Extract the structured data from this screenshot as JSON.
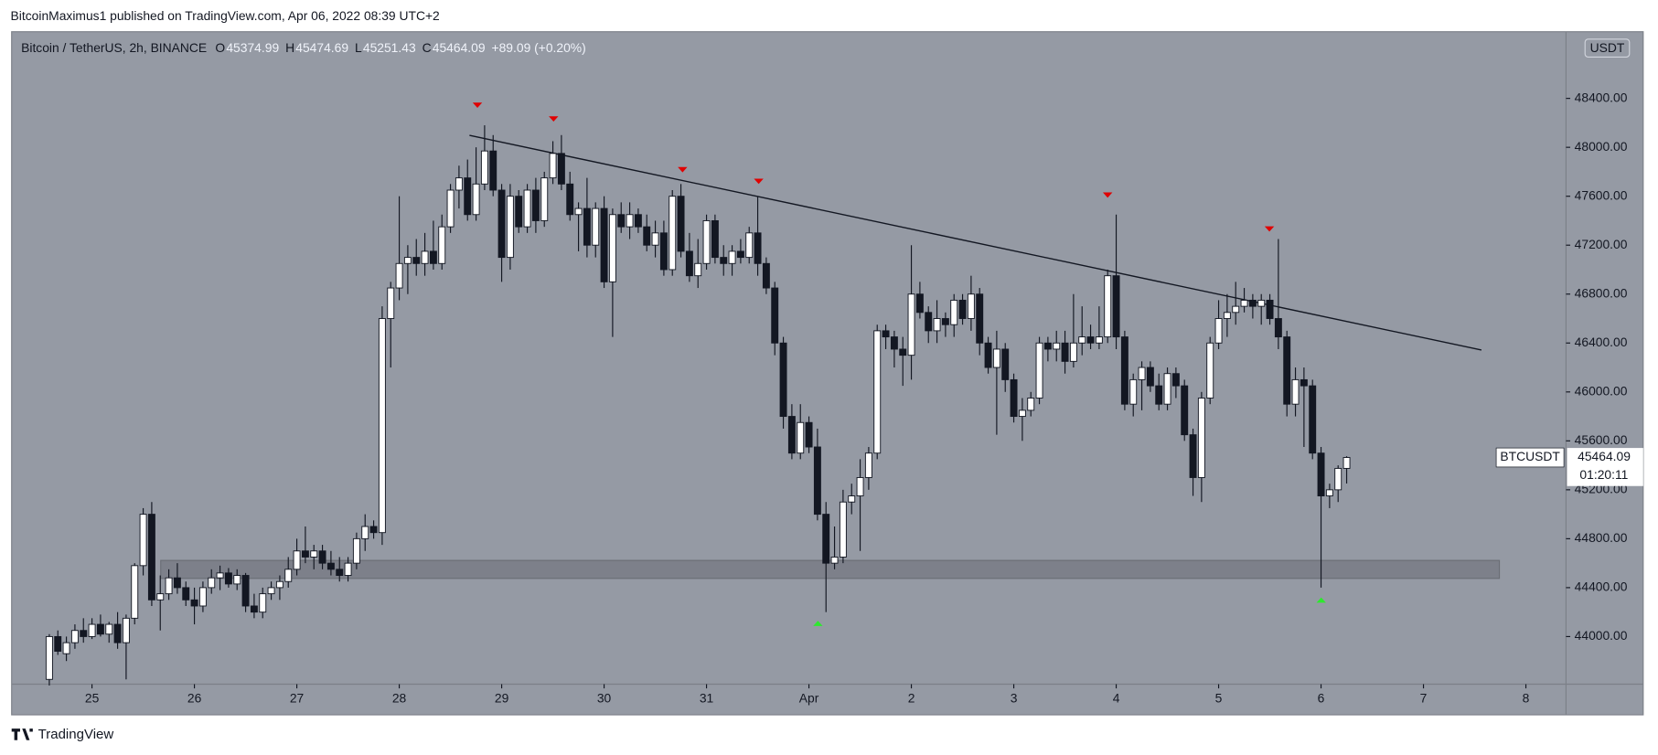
{
  "header": "BitcoinMaximus1 published on TradingView.com, Apr 06, 2022 08:39 UTC+2",
  "footer": "TradingView",
  "chart_data": {
    "type": "candlestick",
    "symbol": "Bitcoin / TetherUS, 2h, BINANCE",
    "legend_keys": [
      "O",
      "H",
      "L",
      "C"
    ],
    "change": "+89.09 (+0.20%)",
    "currency": "USDT",
    "ticker": "BTCUSDT",
    "countdown": "01:20:11",
    "up_color": "#ffffff",
    "down_color": "#131722",
    "xlim": [
      -4.29,
      177.7
    ],
    "xticks": [
      {
        "value": 5,
        "label": "25"
      },
      {
        "value": 17,
        "label": "26"
      },
      {
        "value": 29,
        "label": "27"
      },
      {
        "value": 41,
        "label": "28"
      },
      {
        "value": 53,
        "label": "29"
      },
      {
        "value": 65,
        "label": "30"
      },
      {
        "value": 77,
        "label": "31"
      },
      {
        "value": 89,
        "label": "Apr"
      },
      {
        "value": 101,
        "label": "2"
      },
      {
        "value": 113,
        "label": "3"
      },
      {
        "value": 125,
        "label": "4"
      },
      {
        "value": 137,
        "label": "5"
      },
      {
        "value": 149,
        "label": "6"
      },
      {
        "value": 161,
        "label": "7"
      },
      {
        "value": 173,
        "label": "8"
      }
    ],
    "ylim": [
      43611,
      48945
    ],
    "yticks": [
      {
        "value": 44000,
        "label": "44000.00"
      },
      {
        "value": 44400,
        "label": "44400.00"
      },
      {
        "value": 44800,
        "label": "44800.00"
      },
      {
        "value": 45200,
        "label": "45200.00"
      },
      {
        "value": 45600,
        "label": "45600.00"
      },
      {
        "value": 46000,
        "label": "46000.00"
      },
      {
        "value": 46400,
        "label": "46400.00"
      },
      {
        "value": 46800,
        "label": "46800.00"
      },
      {
        "value": 47200,
        "label": "47200.00"
      },
      {
        "value": 47600,
        "label": "47600.00"
      },
      {
        "value": 48000,
        "label": "48000.00"
      },
      {
        "value": 48400,
        "label": "48400.00"
      }
    ],
    "open": [
      43650,
      44000,
      43860,
      43950,
      44050,
      44000,
      44100,
      44020,
      44100,
      43950,
      44150,
      44580,
      45000,
      44300,
      44350,
      44480,
      44400,
      44300,
      44250,
      44400,
      44480,
      44520,
      44430,
      44500,
      44250,
      44200,
      44350,
      44400,
      44450,
      44550,
      44700,
      44650,
      44700,
      44600,
      44550,
      44500,
      44600,
      44800,
      44900,
      44850,
      46600,
      46850,
      47050,
      47100,
      47050,
      47150,
      47050,
      47350,
      47650,
      47750,
      47450,
      47700,
      47970,
      47650,
      47100,
      47600,
      47350,
      47650,
      47400,
      47750,
      47950,
      47700,
      47450,
      47500,
      47200,
      47500,
      46900,
      47450,
      47350,
      47450,
      47350,
      47200,
      47300,
      47000,
      47600,
      47150,
      46950,
      47050,
      47400,
      47100,
      47050,
      47150,
      47100,
      47300,
      47050,
      46850,
      46400,
      45800,
      45500,
      45750,
      45550,
      45000,
      44600,
      44650,
      45100,
      45150,
      45300,
      45500,
      46500,
      46450,
      46350,
      46300,
      46800,
      46650,
      46500,
      46600,
      46550,
      46750,
      46600,
      46800,
      46400,
      46200,
      46350,
      46100,
      45800,
      45850,
      45950,
      46400,
      46350,
      46400,
      46250,
      46400,
      46450,
      46400,
      46450,
      46950,
      46450,
      45900,
      46100,
      46200,
      46050,
      45900,
      46150,
      46050,
      45650,
      45300,
      45950,
      46400,
      46600,
      46650,
      46700,
      46750,
      46700,
      46750,
      46600,
      46450,
      45900,
      46100,
      46050,
      45500,
      45150,
      45200,
      45374.99
    ],
    "high": [
      44020,
      44050,
      44000,
      44100,
      44150,
      44150,
      44180,
      44120,
      44200,
      44180,
      44600,
      45050,
      45100,
      44500,
      44550,
      44600,
      44450,
      44400,
      44450,
      44550,
      44580,
      44560,
      44550,
      44520,
      44350,
      44400,
      44450,
      44500,
      44650,
      44800,
      44900,
      44750,
      44750,
      44700,
      44650,
      44650,
      44850,
      45000,
      44950,
      46700,
      46900,
      47600,
      47200,
      47250,
      47300,
      47400,
      47450,
      47700,
      47850,
      47900,
      48000,
      48180,
      48100,
      47700,
      47700,
      47650,
      47700,
      47750,
      47800,
      48050,
      48100,
      47800,
      47550,
      47750,
      47550,
      47600,
      47500,
      47550,
      47550,
      47500,
      47450,
      47400,
      47400,
      47650,
      47700,
      47300,
      47250,
      47450,
      47450,
      47200,
      47200,
      47250,
      47350,
      47600,
      47100,
      46900,
      46450,
      45900,
      45900,
      45800,
      45700,
      45100,
      44900,
      45200,
      45250,
      45450,
      45550,
      46550,
      46550,
      46500,
      46450,
      47200,
      46900,
      46700,
      46750,
      46650,
      46800,
      46800,
      46950,
      46850,
      46450,
      46500,
      46400,
      46150,
      45950,
      46000,
      46450,
      46450,
      46500,
      46500,
      46800,
      46700,
      46550,
      46700,
      47000,
      47450,
      46500,
      46150,
      46250,
      46250,
      46150,
      46200,
      46200,
      46100,
      45700,
      46000,
      46450,
      46750,
      46800,
      46900,
      46850,
      46800,
      46800,
      46800,
      47250,
      46500,
      46200,
      46200,
      46100,
      45550,
      45250,
      45400,
      45474.69
    ],
    "low": [
      43600,
      43850,
      43800,
      43900,
      43950,
      43980,
      44000,
      43950,
      43900,
      43650,
      44100,
      44500,
      44250,
      44050,
      44300,
      44350,
      44250,
      44100,
      44200,
      44350,
      44380,
      44400,
      44380,
      44200,
      44150,
      44150,
      44300,
      44300,
      44400,
      44500,
      44600,
      44550,
      44550,
      44500,
      44450,
      44450,
      44550,
      44700,
      44800,
      44750,
      46200,
      46750,
      46800,
      46950,
      46950,
      47000,
      47000,
      47300,
      47500,
      47400,
      47400,
      47650,
      47600,
      46900,
      47000,
      47300,
      47300,
      47300,
      47350,
      47700,
      47650,
      47400,
      47150,
      47100,
      47100,
      46850,
      46450,
      47300,
      47250,
      47300,
      47150,
      47100,
      46950,
      46950,
      47100,
      46900,
      46850,
      47000,
      47050,
      46950,
      46950,
      47050,
      47050,
      46950,
      46800,
      46300,
      45700,
      45450,
      45450,
      45500,
      44950,
      44200,
      44550,
      44600,
      45000,
      44700,
      45200,
      45450,
      46350,
      46200,
      46050,
      46100,
      46600,
      46400,
      46400,
      46450,
      46450,
      46550,
      46500,
      46300,
      46150,
      45650,
      46000,
      45750,
      45600,
      45800,
      45900,
      46250,
      46250,
      46150,
      46200,
      46300,
      46350,
      46350,
      46400,
      46350,
      45850,
      45800,
      45850,
      46000,
      45850,
      45850,
      45950,
      45600,
      45150,
      45100,
      45900,
      46350,
      46450,
      46550,
      46650,
      46600,
      46550,
      46550,
      46350,
      45800,
      45800,
      45550,
      45450,
      44400,
      45050,
      45100,
      45251.43
    ],
    "close": [
      44000,
      43880,
      43950,
      44050,
      44000,
      44100,
      44020,
      44100,
      43950,
      44150,
      44580,
      45000,
      44300,
      44350,
      44480,
      44400,
      44300,
      44250,
      44400,
      44480,
      44520,
      44430,
      44500,
      44250,
      44200,
      44350,
      44400,
      44450,
      44550,
      44700,
      44650,
      44700,
      44600,
      44550,
      44500,
      44600,
      44800,
      44900,
      44850,
      46600,
      46850,
      47050,
      47100,
      47050,
      47150,
      47050,
      47350,
      47650,
      47750,
      47450,
      47700,
      47970,
      47650,
      47100,
      47600,
      47350,
      47650,
      47400,
      47750,
      47950,
      47700,
      47450,
      47500,
      47200,
      47500,
      46900,
      47450,
      47350,
      47450,
      47350,
      47200,
      47300,
      47000,
      47600,
      47150,
      46950,
      47050,
      47400,
      47100,
      47050,
      47150,
      47100,
      47300,
      47050,
      46850,
      46400,
      45800,
      45500,
      45750,
      45550,
      45000,
      44600,
      44650,
      45100,
      45150,
      45300,
      45500,
      46500,
      46450,
      46350,
      46300,
      46800,
      46650,
      46500,
      46600,
      46550,
      46750,
      46600,
      46800,
      46400,
      46200,
      46350,
      46100,
      45800,
      45850,
      45950,
      46400,
      46350,
      46400,
      46250,
      46400,
      46450,
      46400,
      46450,
      46950,
      46450,
      45900,
      46100,
      46200,
      46050,
      45900,
      46150,
      46050,
      45650,
      45300,
      45950,
      46400,
      46600,
      46650,
      46700,
      46750,
      46700,
      46750,
      46600,
      46450,
      45900,
      46100,
      46050,
      45500,
      45150,
      45200,
      45374.99,
      45464.09
    ]
  }
}
